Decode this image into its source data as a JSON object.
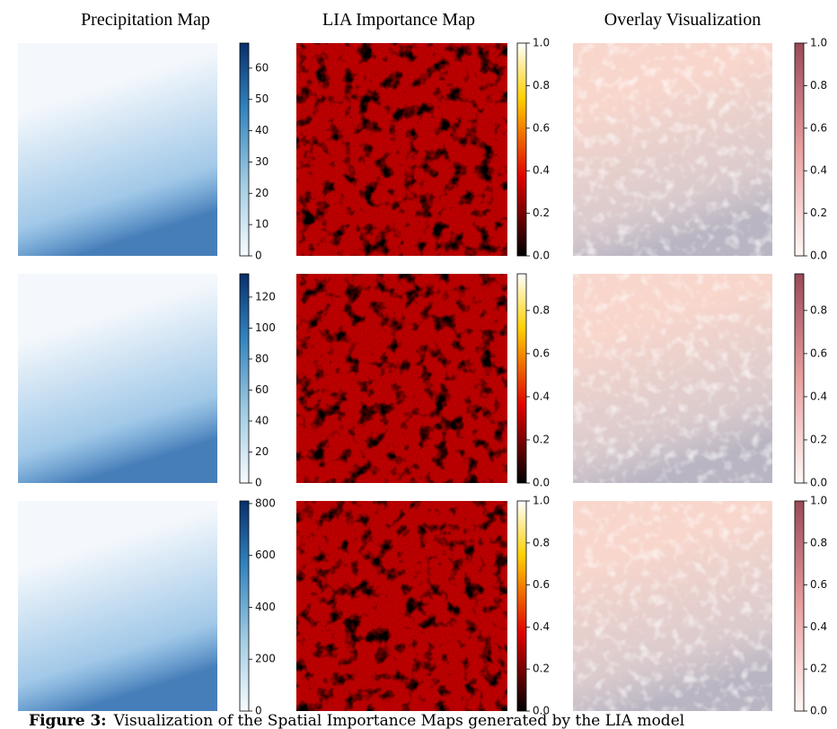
{
  "column_titles": [
    "Precipitation Map",
    "LIA Importance Map",
    "Overlay Visualization"
  ],
  "rows": [
    {
      "colorbars": [
        {
          "range": [
            0,
            68
          ],
          "ticks": [
            0,
            10,
            20,
            30,
            40,
            50,
            60
          ]
        },
        {
          "range": [
            0,
            1
          ],
          "ticks": [
            {
              "value": 0,
              "label": "0.0"
            },
            {
              "value": 0.2,
              "label": "0.2"
            },
            {
              "value": 0.4,
              "label": "0.4"
            },
            {
              "value": 0.6,
              "label": "0.6"
            },
            {
              "value": 0.8,
              "label": "0.8"
            },
            {
              "value": 1,
              "label": "1.0"
            }
          ]
        },
        {
          "range": [
            0,
            1
          ],
          "ticks": [
            {
              "value": 0,
              "label": "0.0"
            },
            {
              "value": 0.2,
              "label": "0.2"
            },
            {
              "value": 0.4,
              "label": "0.4"
            },
            {
              "value": 0.6,
              "label": "0.6"
            },
            {
              "value": 0.8,
              "label": "0.8"
            },
            {
              "value": 1,
              "label": "1.0"
            }
          ]
        }
      ]
    },
    {
      "colorbars": [
        {
          "range": [
            0,
            135
          ],
          "ticks": [
            0,
            20,
            40,
            60,
            80,
            100,
            120
          ]
        },
        {
          "range": [
            0,
            0.97
          ],
          "ticks": [
            {
              "value": 0,
              "label": "0.0"
            },
            {
              "value": 0.2,
              "label": "0.2"
            },
            {
              "value": 0.4,
              "label": "0.4"
            },
            {
              "value": 0.6,
              "label": "0.6"
            },
            {
              "value": 0.8,
              "label": "0.8"
            }
          ]
        },
        {
          "range": [
            0,
            0.97
          ],
          "ticks": [
            {
              "value": 0,
              "label": "0.0"
            },
            {
              "value": 0.2,
              "label": "0.2"
            },
            {
              "value": 0.4,
              "label": "0.4"
            },
            {
              "value": 0.6,
              "label": "0.6"
            },
            {
              "value": 0.8,
              "label": "0.8"
            }
          ]
        }
      ]
    },
    {
      "colorbars": [
        {
          "range": [
            0,
            810
          ],
          "ticks": [
            0,
            200,
            400,
            600,
            800
          ]
        },
        {
          "range": [
            0,
            1
          ],
          "ticks": [
            {
              "value": 0,
              "label": "0.0"
            },
            {
              "value": 0.2,
              "label": "0.2"
            },
            {
              "value": 0.4,
              "label": "0.4"
            },
            {
              "value": 0.6,
              "label": "0.6"
            },
            {
              "value": 0.8,
              "label": "0.8"
            },
            {
              "value": 1,
              "label": "1.0"
            }
          ]
        },
        {
          "range": [
            0,
            1
          ],
          "ticks": [
            {
              "value": 0,
              "label": "0.0"
            },
            {
              "value": 0.2,
              "label": "0.2"
            },
            {
              "value": 0.4,
              "label": "0.4"
            },
            {
              "value": 0.6,
              "label": "0.6"
            },
            {
              "value": 0.8,
              "label": "0.8"
            },
            {
              "value": 1,
              "label": "1.0"
            }
          ]
        }
      ]
    }
  ],
  "caption": {
    "label": "Figure 3:",
    "text": "Visualization of the Spatial Importance Maps generated by the LIA model"
  }
}
